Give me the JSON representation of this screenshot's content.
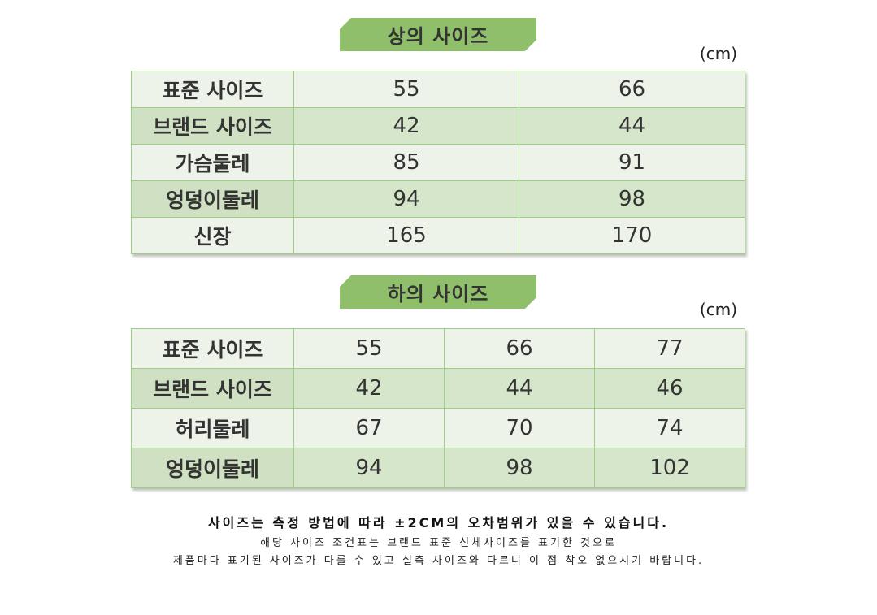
{
  "top_section": {
    "title": "상의 사이즈",
    "unit": "(cm)",
    "rows": [
      {
        "label": "표준 사이즈",
        "values": [
          "55",
          "66"
        ]
      },
      {
        "label": "브랜드 사이즈",
        "values": [
          "42",
          "44"
        ]
      },
      {
        "label": "가슴둘레",
        "values": [
          "85",
          "91"
        ]
      },
      {
        "label": "엉덩이둘레",
        "values": [
          "94",
          "98"
        ]
      },
      {
        "label": "신장",
        "values": [
          "165",
          "170"
        ]
      }
    ]
  },
  "bottom_section": {
    "title": "하의 사이즈",
    "unit": "(cm)",
    "rows": [
      {
        "label": "표준 사이즈",
        "values": [
          "55",
          "66",
          "77"
        ]
      },
      {
        "label": "브랜드 사이즈",
        "values": [
          "42",
          "44",
          "46"
        ]
      },
      {
        "label": "허리둘레",
        "values": [
          "67",
          "70",
          "74"
        ]
      },
      {
        "label": "엉덩이둘레",
        "values": [
          "94",
          "98",
          "102"
        ]
      }
    ]
  },
  "notes": {
    "line1": "사이즈는 측정 방법에 따라 ±2CM의 오차범위가 있을 수 있습니다.",
    "line2": "해당 사이즈 조건표는 브랜드 표준 신체사이즈를 표기한 것으로",
    "line3": "제품마다 표기된 사이즈가 다를 수 있고 실측 사이즈와 다르니 이 점 착오 없으시기 바랍니다."
  },
  "colors": {
    "banner": "#8fbf6a",
    "row_light": "#eef3ea",
    "row_dark": "#d6e6ca",
    "border": "#9ccf84"
  }
}
